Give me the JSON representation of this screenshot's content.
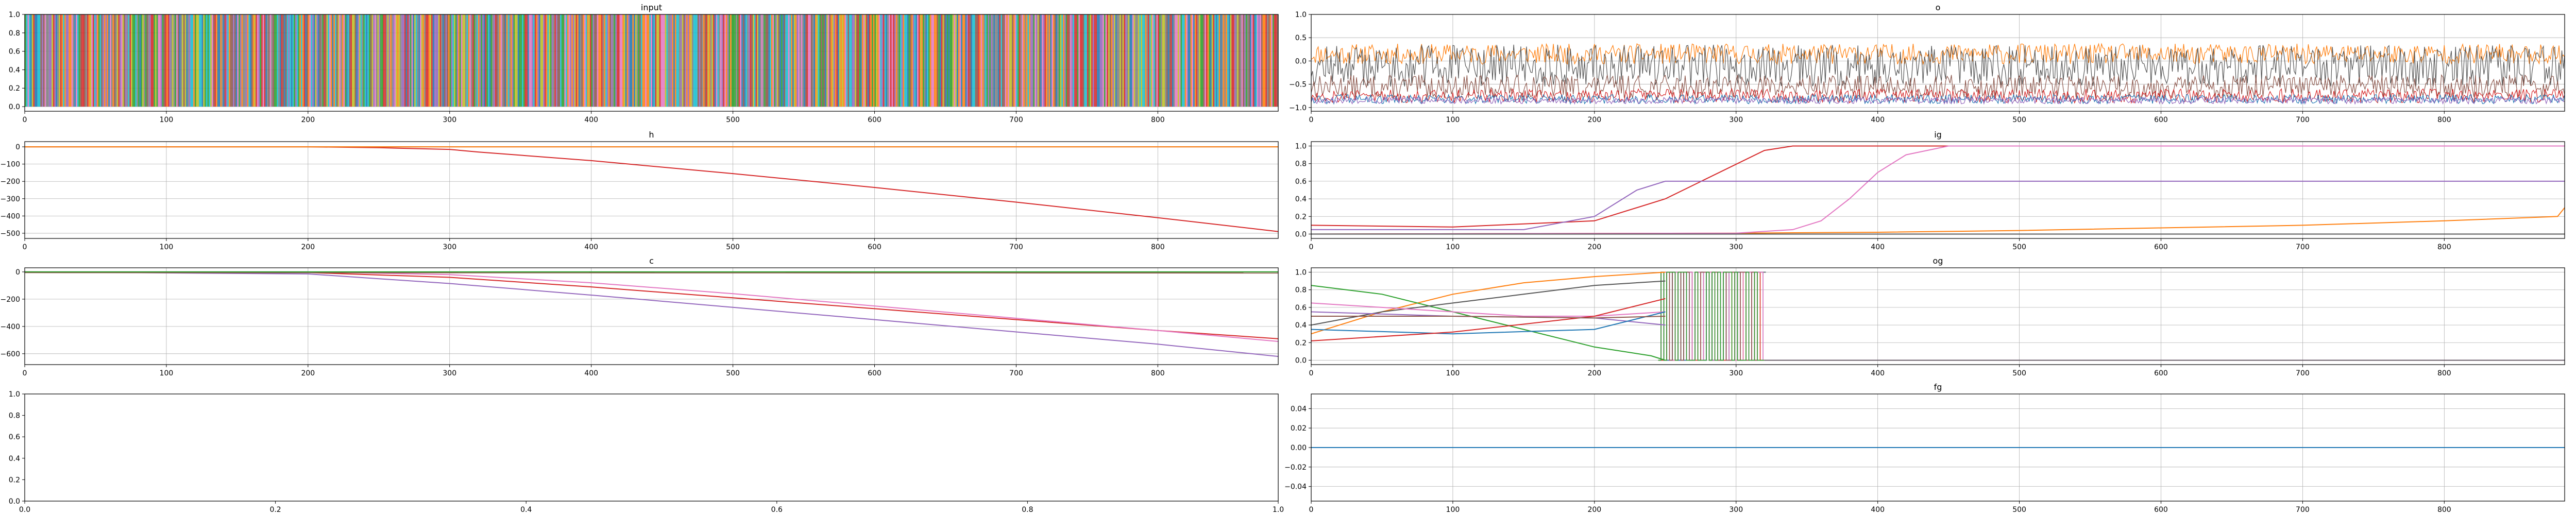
{
  "chart_data": [
    {
      "type": "line",
      "title": "input",
      "xlim": [
        0,
        885
      ],
      "ylim": [
        -0.05,
        1.0
      ],
      "grid": true,
      "xticks": [
        0,
        100,
        200,
        300,
        400,
        500,
        600,
        700,
        800
      ],
      "yticks": [
        0.0,
        0.2,
        0.4,
        0.6,
        0.8,
        1.0
      ],
      "xtick_labels": [
        "0",
        "100",
        "200",
        "300",
        "400",
        "500",
        "600",
        "700",
        "800"
      ],
      "ytick_labels": [
        "0.0",
        "0.2",
        "0.4",
        "0.6",
        "0.8",
        "1.0"
      ],
      "description_series": [
        {
          "kind": "onehot",
          "n_steps": 885,
          "n_channels": 10,
          "seed": 7
        }
      ]
    },
    {
      "type": "line",
      "title": "o",
      "xlim": [
        0,
        885
      ],
      "ylim": [
        -1.08,
        1.0
      ],
      "grid": true,
      "xticks": [
        0,
        100,
        200,
        300,
        400,
        500,
        600,
        700,
        800
      ],
      "yticks": [
        -1.0,
        -0.5,
        0.0,
        0.5,
        1.0
      ],
      "xtick_labels": [
        "0",
        "100",
        "200",
        "300",
        "400",
        "500",
        "600",
        "700",
        "800"
      ],
      "ytick_labels": [
        "−1.0",
        "−0.5",
        "0.0",
        "0.5",
        "1.0"
      ],
      "description_series": [
        {
          "kind": "noise",
          "color": "#ff7f0e",
          "base": 0.15,
          "amp": 0.22,
          "seed": 11
        },
        {
          "kind": "noise",
          "color": "#555555",
          "base": -0.1,
          "amp": 0.45,
          "seed": 12
        },
        {
          "kind": "noise",
          "color": "#8c564b",
          "base": -0.55,
          "amp": 0.25,
          "seed": 13
        },
        {
          "kind": "noise",
          "color": "#d62728",
          "base": -0.75,
          "amp": 0.15,
          "seed": 14
        },
        {
          "kind": "noise",
          "color": "#1f77b4",
          "base": -0.82,
          "amp": 0.1,
          "seed": 15
        },
        {
          "kind": "noise",
          "color": "#9467bd",
          "base": -0.85,
          "amp": 0.07,
          "seed": 16
        }
      ]
    },
    {
      "type": "line",
      "title": "h",
      "xlim": [
        0,
        885
      ],
      "ylim": [
        -530,
        30
      ],
      "grid": true,
      "xticks": [
        0,
        100,
        200,
        300,
        400,
        500,
        600,
        700,
        800
      ],
      "yticks": [
        -500,
        -400,
        -300,
        -200,
        -100,
        0
      ],
      "xtick_labels": [
        "0",
        "100",
        "200",
        "300",
        "400",
        "500",
        "600",
        "700",
        "800"
      ],
      "ytick_labels": [
        "−500",
        "−400",
        "−300",
        "−200",
        "−100",
        "0"
      ],
      "series": [
        {
          "color": "#d62728",
          "x": [
            0,
            200,
            250,
            300,
            320,
            400,
            500,
            600,
            700,
            800,
            885
          ],
          "y": [
            0,
            0,
            -5,
            -15,
            -30,
            -80,
            -155,
            -235,
            -320,
            -410,
            -490
          ]
        },
        {
          "color": "#8c564b",
          "x": [
            0,
            885
          ],
          "y": [
            0,
            0
          ]
        },
        {
          "color": "#ff7f0e",
          "x": [
            0,
            885
          ],
          "y": [
            0,
            0
          ]
        }
      ]
    },
    {
      "type": "line",
      "title": "ig",
      "xlim": [
        0,
        885
      ],
      "ylim": [
        -0.05,
        1.05
      ],
      "grid": true,
      "xticks": [
        0,
        100,
        200,
        300,
        400,
        500,
        600,
        700,
        800
      ],
      "yticks": [
        0.0,
        0.2,
        0.4,
        0.6,
        0.8,
        1.0
      ],
      "xtick_labels": [
        "0",
        "100",
        "200",
        "300",
        "400",
        "500",
        "600",
        "700",
        "800"
      ],
      "ytick_labels": [
        "0.0",
        "0.2",
        "0.4",
        "0.6",
        "0.8",
        "1.0"
      ],
      "series": [
        {
          "color": "#ff7f0e",
          "x": [
            0,
            300,
            400,
            500,
            600,
            700,
            800,
            880,
            885
          ],
          "y": [
            0.0,
            0.01,
            0.02,
            0.04,
            0.07,
            0.1,
            0.15,
            0.2,
            0.3
          ]
        },
        {
          "color": "#d62728",
          "x": [
            0,
            100,
            200,
            250,
            320,
            340,
            400,
            885
          ],
          "y": [
            0.1,
            0.08,
            0.15,
            0.4,
            0.95,
            1.0,
            1.0,
            1.0
          ]
        },
        {
          "color": "#e377c2",
          "x": [
            0,
            300,
            340,
            360,
            380,
            400,
            420,
            450,
            885
          ],
          "y": [
            0.0,
            0.01,
            0.05,
            0.15,
            0.4,
            0.7,
            0.9,
            1.0,
            1.0
          ]
        },
        {
          "color": "#9467bd",
          "x": [
            0,
            150,
            200,
            230,
            250,
            885
          ],
          "y": [
            0.05,
            0.05,
            0.2,
            0.5,
            0.6,
            0.6
          ]
        },
        {
          "color": "#555555",
          "x": [
            0,
            885
          ],
          "y": [
            0.0,
            0.0
          ]
        }
      ]
    },
    {
      "type": "line",
      "title": "c",
      "xlim": [
        0,
        885
      ],
      "ylim": [
        -680,
        30
      ],
      "grid": true,
      "xticks": [
        0,
        100,
        200,
        300,
        400,
        500,
        600,
        700,
        800
      ],
      "yticks": [
        -600,
        -400,
        -200,
        0
      ],
      "xtick_labels": [
        "0",
        "100",
        "200",
        "300",
        "400",
        "500",
        "600",
        "700",
        "800"
      ],
      "ytick_labels": [
        "−600",
        "−400",
        "−200",
        "0"
      ],
      "series": [
        {
          "color": "#9467bd",
          "x": [
            0,
            200,
            300,
            400,
            500,
            600,
            700,
            800,
            885
          ],
          "y": [
            0,
            -15,
            -85,
            -170,
            -260,
            -350,
            -440,
            -530,
            -620
          ]
        },
        {
          "color": "#d62728",
          "x": [
            0,
            200,
            300,
            400,
            500,
            600,
            700,
            800,
            885
          ],
          "y": [
            0,
            -5,
            -40,
            -110,
            -190,
            -270,
            -350,
            -430,
            -490
          ]
        },
        {
          "color": "#e377c2",
          "x": [
            0,
            200,
            300,
            400,
            500,
            600,
            700,
            800,
            885
          ],
          "y": [
            0,
            0,
            -20,
            -80,
            -160,
            -250,
            -340,
            -430,
            -510
          ]
        },
        {
          "color": "#8c564b",
          "x": [
            0,
            885
          ],
          "y": [
            -5,
            -8
          ]
        },
        {
          "color": "#2ca02c",
          "x": [
            0,
            885
          ],
          "y": [
            0,
            0
          ]
        }
      ]
    },
    {
      "type": "line",
      "title": "og",
      "xlim": [
        0,
        885
      ],
      "ylim": [
        -0.05,
        1.05
      ],
      "grid": true,
      "xticks": [
        0,
        100,
        200,
        300,
        400,
        500,
        600,
        700,
        800
      ],
      "yticks": [
        0.0,
        0.2,
        0.4,
        0.6,
        0.8,
        1.0
      ],
      "xtick_labels": [
        "0",
        "100",
        "200",
        "300",
        "400",
        "500",
        "600",
        "700",
        "800"
      ],
      "ytick_labels": [
        "0.0",
        "0.2",
        "0.4",
        "0.6",
        "0.8",
        "1.0"
      ],
      "series": [
        {
          "color": "#ff7f0e",
          "x": [
            0,
            50,
            100,
            150,
            200,
            250
          ],
          "y": [
            0.3,
            0.55,
            0.75,
            0.88,
            0.95,
            1.0
          ]
        },
        {
          "color": "#2ca02c",
          "x": [
            0,
            50,
            100,
            150,
            200,
            240,
            250
          ],
          "y": [
            0.85,
            0.75,
            0.55,
            0.35,
            0.15,
            0.05,
            0.0
          ]
        },
        {
          "color": "#555555",
          "x": [
            0,
            50,
            100,
            150,
            200,
            250
          ],
          "y": [
            0.4,
            0.55,
            0.65,
            0.75,
            0.85,
            0.9
          ]
        },
        {
          "color": "#e377c2",
          "x": [
            0,
            50,
            100,
            150,
            200,
            250
          ],
          "y": [
            0.65,
            0.6,
            0.55,
            0.5,
            0.5,
            0.55
          ]
        },
        {
          "color": "#9467bd",
          "x": [
            0,
            100,
            200,
            250
          ],
          "y": [
            0.55,
            0.5,
            0.48,
            0.4
          ]
        },
        {
          "color": "#1f77b4",
          "x": [
            0,
            100,
            200,
            250
          ],
          "y": [
            0.35,
            0.3,
            0.35,
            0.55
          ]
        },
        {
          "color": "#d62728",
          "x": [
            0,
            100,
            200,
            250
          ],
          "y": [
            0.22,
            0.32,
            0.5,
            0.7
          ]
        },
        {
          "color": "#8c564b",
          "x": [
            0,
            100,
            200,
            250
          ],
          "y": [
            0.5,
            0.5,
            0.48,
            0.5
          ]
        }
      ],
      "description_series": [
        {
          "kind": "flip",
          "x_start": 245,
          "x_end": 320,
          "colors": [
            "#ff7f0e",
            "#d62728",
            "#9467bd",
            "#1f77b4",
            "#555555",
            "#e377c2",
            "#8c564b",
            "#2ca02c"
          ]
        },
        {
          "kind": "const",
          "colors": [
            "#9467bd",
            "#1f77b4",
            "#8c564b",
            "#e377c2",
            "#555555"
          ],
          "x_start": 320,
          "y": 0.0
        }
      ]
    },
    {
      "type": "line",
      "title": "",
      "xlim": [
        0.0,
        1.0
      ],
      "ylim": [
        0.0,
        1.0
      ],
      "grid": false,
      "xticks": [
        0.0,
        0.2,
        0.4,
        0.6,
        0.8,
        1.0
      ],
      "yticks": [
        0.0,
        0.2,
        0.4,
        0.6,
        0.8,
        1.0
      ],
      "xtick_labels": [
        "0.0",
        "0.2",
        "0.4",
        "0.6",
        "0.8",
        "1.0"
      ],
      "ytick_labels": [
        "0.0",
        "0.2",
        "0.4",
        "0.6",
        "0.8",
        "1.0"
      ],
      "series": []
    },
    {
      "type": "line",
      "title": "fg",
      "xlim": [
        0,
        885
      ],
      "ylim": [
        -0.055,
        0.055
      ],
      "grid": true,
      "xticks": [
        0,
        100,
        200,
        300,
        400,
        500,
        600,
        700,
        800
      ],
      "yticks": [
        -0.04,
        -0.02,
        0.0,
        0.02,
        0.04
      ],
      "xtick_labels": [
        "0",
        "100",
        "200",
        "300",
        "400",
        "500",
        "600",
        "700",
        "800"
      ],
      "ytick_labels": [
        "−0.04",
        "−0.02",
        "0.00",
        "0.02",
        "0.04"
      ],
      "series": [
        {
          "color": "#1f77b4",
          "x": [
            0,
            885
          ],
          "y": [
            0.0,
            0.0
          ]
        }
      ]
    }
  ]
}
